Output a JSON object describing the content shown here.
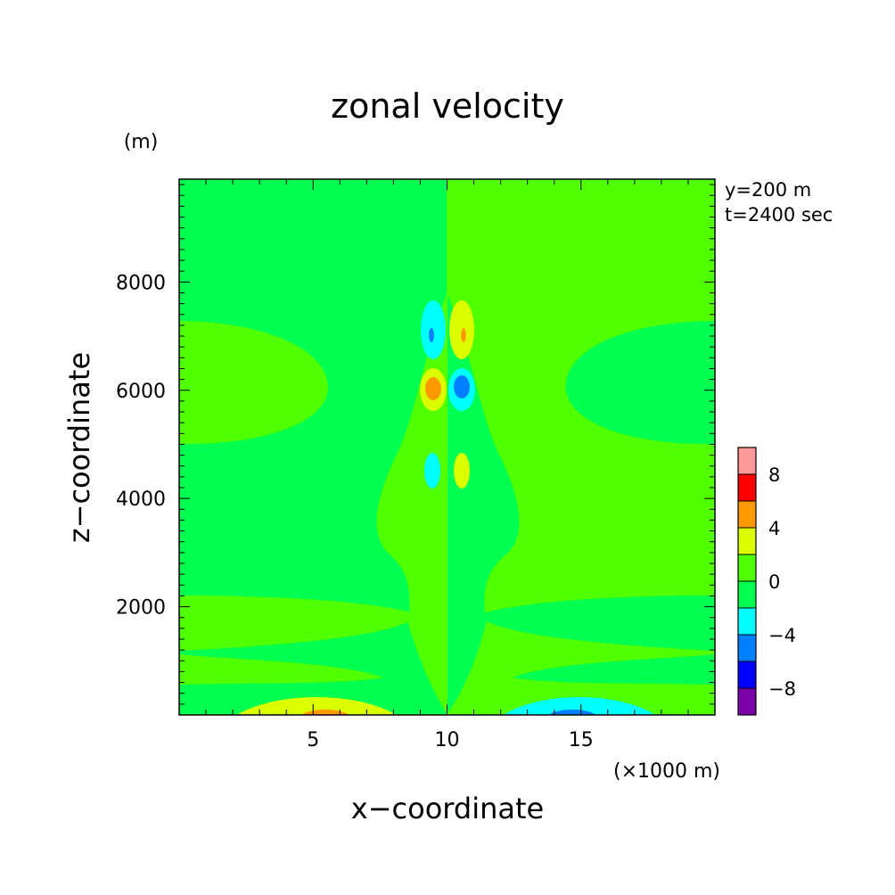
{
  "chart_data": {
    "type": "heatmap",
    "title": "zonal velocity",
    "xlabel": "x−coordinate",
    "ylabel": "z−coordinate",
    "x_unit": "(×1000 m)",
    "y_unit": "(m)",
    "annotations": [
      "y=200 m",
      "t=2400 sec"
    ],
    "xlim": [
      0,
      20
    ],
    "ylim": [
      0,
      9900
    ],
    "x_ticks": [
      5,
      10,
      15
    ],
    "x_tick_labels": [
      "5",
      "10",
      "15"
    ],
    "y_ticks": [
      2000,
      4000,
      6000,
      8000
    ],
    "y_tick_labels": [
      "2000",
      "4000",
      "6000",
      "8000"
    ],
    "colorbar": {
      "levels": [
        -10,
        -8,
        -6,
        -4,
        -2,
        0,
        2,
        4,
        6,
        8,
        10
      ],
      "tick_values": [
        -8,
        -4,
        0,
        4,
        8
      ],
      "tick_labels": [
        "−8",
        "−4",
        "0",
        "4",
        "8"
      ],
      "colors": [
        "#7a00a8",
        "#0000ff",
        "#0080ff",
        "#00ffff",
        "#00ff50",
        "#50ff00",
        "#dcff00",
        "#ff9900",
        "#ff0000",
        "#ff9999"
      ]
    },
    "features": [
      {
        "name": "upper-west-dipole-neg",
        "x": 9.4,
        "z": 7000,
        "value": -4.5
      },
      {
        "name": "upper-east-dipole-pos",
        "x": 10.6,
        "z": 7000,
        "value": 4.5
      },
      {
        "name": "mid-west-dipole-pos",
        "x": 9.4,
        "z": 6050,
        "value": 5.5
      },
      {
        "name": "mid-east-dipole-neg",
        "x": 10.6,
        "z": 6050,
        "value": -5.5
      },
      {
        "name": "lower-west-neg",
        "x": 9.4,
        "z": 4550,
        "value": -3
      },
      {
        "name": "lower-east-pos",
        "x": 10.6,
        "z": 4550,
        "value": 3
      },
      {
        "name": "surface-west-pos",
        "x": 5.3,
        "z": 0,
        "value": 5
      },
      {
        "name": "surface-east-neg",
        "x": 14.7,
        "z": 0,
        "value": -5
      }
    ]
  }
}
